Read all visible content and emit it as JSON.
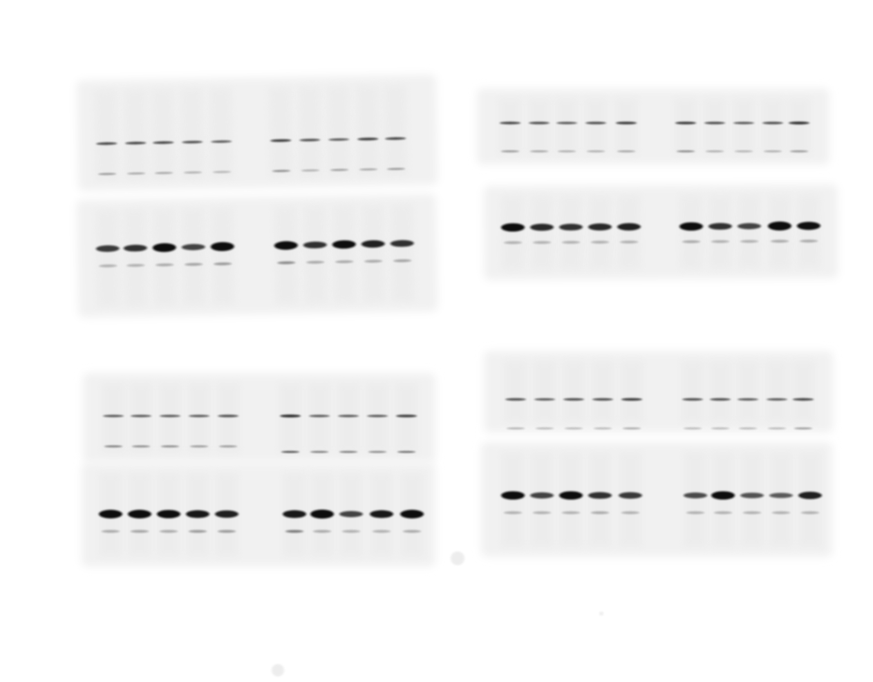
{
  "image": {
    "background_color": "#ffffff",
    "membrane_color": "#f1f1f1",
    "band_color": "#111111",
    "panels": [
      {
        "strips": [
          {
            "upper_bands": [
              0.55,
              0.55,
              0.55,
              0.5,
              0.45,
              0.6,
              0.5,
              0.45,
              0.6,
              0.55
            ],
            "lower_bands": [
              0.2,
              0.15,
              0.15,
              0.12,
              0.1,
              0.25,
              0.12,
              0.18,
              0.15,
              0.2
            ]
          },
          {
            "upper_bands": [
              0.6,
              0.65,
              0.98,
              0.55,
              1.0,
              0.95,
              0.65,
              0.9,
              0.75,
              0.65
            ],
            "lower_bands": [
              0.08,
              0.08,
              0.1,
              0.12,
              0.15,
              0.2,
              0.1,
              0.1,
              0.1,
              0.12
            ]
          }
        ]
      },
      {
        "strips": [
          {
            "upper_bands": [
              0.55,
              0.5,
              0.45,
              0.5,
              0.6,
              0.6,
              0.5,
              0.45,
              0.5,
              0.65
            ],
            "lower_bands": [
              0.2,
              0.15,
              0.12,
              0.12,
              0.15,
              0.25,
              0.12,
              0.1,
              0.12,
              0.2
            ]
          },
          {
            "upper_bands": [
              0.9,
              0.7,
              0.65,
              0.7,
              0.75,
              0.9,
              0.65,
              0.55,
              1.0,
              0.85
            ],
            "lower_bands": [
              0.08,
              0.08,
              0.08,
              0.08,
              0.08,
              0.1,
              0.08,
              0.08,
              0.1,
              0.1
            ]
          }
        ]
      },
      {
        "strips": [
          {
            "upper_bands": [
              0.45,
              0.45,
              0.45,
              0.45,
              0.5,
              0.7,
              0.45,
              0.45,
              0.45,
              0.6
            ],
            "lower_bands": [
              0.3,
              0.25,
              0.25,
              0.2,
              0.2,
              0.45,
              0.3,
              0.3,
              0.25,
              0.35
            ]
          },
          {
            "upper_bands": [
              0.95,
              0.95,
              0.9,
              0.8,
              0.75,
              0.8,
              1.0,
              0.55,
              0.8,
              0.95
            ],
            "lower_bands": [
              0.1,
              0.12,
              0.1,
              0.15,
              0.15,
              0.25,
              0.1,
              0.08,
              0.08,
              0.1
            ]
          }
        ]
      },
      {
        "strips": [
          {
            "upper_bands": [
              0.5,
              0.45,
              0.5,
              0.5,
              0.6,
              0.5,
              0.5,
              0.45,
              0.45,
              0.55
            ],
            "lower_bands": [
              0.12,
              0.1,
              0.1,
              0.1,
              0.15,
              0.1,
              0.1,
              0.1,
              0.1,
              0.2
            ]
          },
          {
            "upper_bands": [
              0.9,
              0.55,
              0.9,
              0.65,
              0.6,
              0.5,
              0.9,
              0.45,
              0.4,
              0.75
            ],
            "lower_bands": [
              0.08,
              0.08,
              0.08,
              0.1,
              0.08,
              0.08,
              0.08,
              0.08,
              0.08,
              0.08
            ]
          }
        ]
      }
    ]
  }
}
